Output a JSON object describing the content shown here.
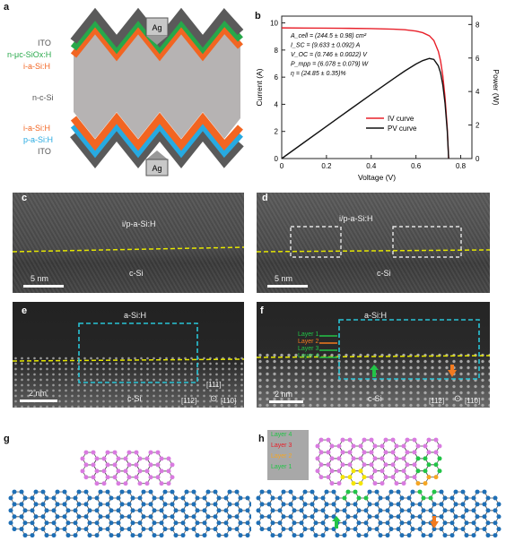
{
  "panel_labels": {
    "a": "a",
    "b": "b",
    "c": "c",
    "d": "d",
    "e": "e",
    "f": "f",
    "g": "g",
    "h": "h"
  },
  "panel_a": {
    "layers_top": [
      "ITO",
      "n-μc-SiOx:H",
      "i-a-Si:H"
    ],
    "core": "n-c-Si",
    "layers_bottom": [
      "i-a-Si:H",
      "p-a-Si:H",
      "ITO"
    ],
    "electrode": "Ag",
    "colors": {
      "ito": "#5a5a5a",
      "n_layer": "#27a84a",
      "i_layer": "#f26522",
      "p_layer": "#27aae1",
      "csi": "#b6b3b3"
    }
  },
  "chart_data": {
    "type": "line",
    "xlabel": "Voltage (V)",
    "ylabel": "Current (A)",
    "y2label": "Power (W)",
    "xlim": [
      0,
      0.85
    ],
    "ylim": [
      0,
      10.5
    ],
    "y2lim": [
      0,
      8.5
    ],
    "xticks": [
      "0",
      "0.2",
      "0.4",
      "0.6",
      "0.8"
    ],
    "yticks": [
      "0",
      "2",
      "4",
      "6",
      "8",
      "10"
    ],
    "y2ticks": [
      "0",
      "2",
      "4",
      "6",
      "8"
    ],
    "annotations": [
      "A_cell = (244.5 ± 0.98) cm²",
      "I_SC = (9.633 ± 0.092) A",
      "V_OC = (0.746 ± 0.0022) V",
      "P_mpp = (6.078 ± 0.079) W",
      "η = (24.85 ± 0.35)%"
    ],
    "series": [
      {
        "name": "IV curve",
        "color": "#e8202a",
        "x": [
          0,
          0.1,
          0.2,
          0.3,
          0.4,
          0.5,
          0.55,
          0.6,
          0.63,
          0.66,
          0.68,
          0.7,
          0.71,
          0.72,
          0.73,
          0.74,
          0.746
        ],
        "y": [
          9.633,
          9.62,
          9.61,
          9.6,
          9.58,
          9.54,
          9.5,
          9.4,
          9.28,
          9.05,
          8.7,
          7.9,
          7.2,
          6.1,
          4.5,
          2.2,
          0
        ]
      },
      {
        "name": "PV curve",
        "color": "#111111",
        "x": [
          0,
          0.1,
          0.2,
          0.3,
          0.4,
          0.5,
          0.55,
          0.6,
          0.63,
          0.66,
          0.68,
          0.7,
          0.71,
          0.72,
          0.73,
          0.74,
          0.746
        ],
        "y": [
          0,
          0.962,
          1.922,
          2.88,
          3.832,
          4.77,
          5.225,
          5.64,
          5.846,
          5.973,
          5.916,
          5.53,
          5.112,
          4.392,
          3.285,
          1.628,
          0
        ]
      }
    ],
    "legend": {
      "placement": "bottom-right",
      "iv": "IV curve",
      "pv": "PV curve"
    }
  },
  "tem_c": {
    "region_label": "i/p-a-Si:H",
    "substrate": "c-Si",
    "scale": "5 nm"
  },
  "tem_d": {
    "region_label": "i/p-a-Si:H",
    "substrate": "c-Si",
    "scale": "5 nm"
  },
  "tem_e": {
    "region_label": "a-Si:H",
    "substrate": "c-Si",
    "scale": "2 nm",
    "dir1": "[111]",
    "dir2": "[112]",
    "dir3": "[110]"
  },
  "tem_f": {
    "region_label": "a-Si:H",
    "substrate": "c-Si",
    "scale": "2 nm",
    "dir2": "[112]",
    "dir3": "[110]",
    "layers": [
      "Layer 1",
      "Layer 2",
      "Layer 3",
      "Layer 4"
    ]
  },
  "panel_h": {
    "layers": [
      "Layer 4",
      "Layer 3",
      "Layer 2",
      "Layer 1"
    ]
  }
}
